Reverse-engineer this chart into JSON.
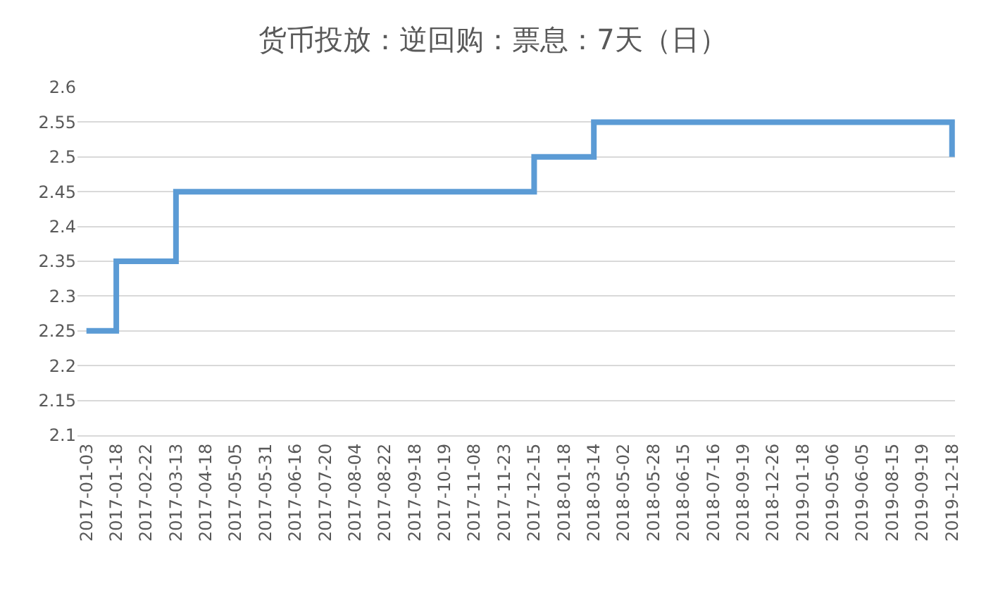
{
  "chart_data": {
    "type": "step",
    "title": "货币投放：逆回购：票息：7天（日）",
    "categories": [
      "2017-01-03",
      "2017-01-18",
      "2017-02-22",
      "2017-03-13",
      "2017-04-18",
      "2017-05-05",
      "2017-05-31",
      "2017-06-16",
      "2017-07-20",
      "2017-08-04",
      "2017-08-22",
      "2017-09-18",
      "2017-10-19",
      "2017-11-08",
      "2017-11-23",
      "2017-12-15",
      "2018-01-18",
      "2018-03-14",
      "2018-05-02",
      "2018-05-28",
      "2018-06-15",
      "2018-07-16",
      "2018-09-19",
      "2018-12-26",
      "2019-01-18",
      "2019-05-06",
      "2019-06-05",
      "2019-08-15",
      "2019-09-19",
      "2019-12-18"
    ],
    "series": [
      {
        "color": "#5b9bd5",
        "values": [
          2.25,
          2.35,
          2.35,
          2.45,
          2.45,
          2.45,
          2.45,
          2.45,
          2.45,
          2.45,
          2.45,
          2.45,
          2.45,
          2.45,
          2.45,
          2.5,
          2.5,
          2.55,
          2.55,
          2.55,
          2.55,
          2.55,
          2.55,
          2.55,
          2.55,
          2.55,
          2.55,
          2.55,
          2.55,
          2.5
        ]
      }
    ],
    "ylim": [
      2.1,
      2.6
    ],
    "yticks": [
      2.1,
      2.15,
      2.2,
      2.25,
      2.3,
      2.35,
      2.4,
      2.45,
      2.5,
      2.55,
      2.6
    ],
    "grid": "y",
    "marker": "none",
    "line_style": "solid"
  }
}
